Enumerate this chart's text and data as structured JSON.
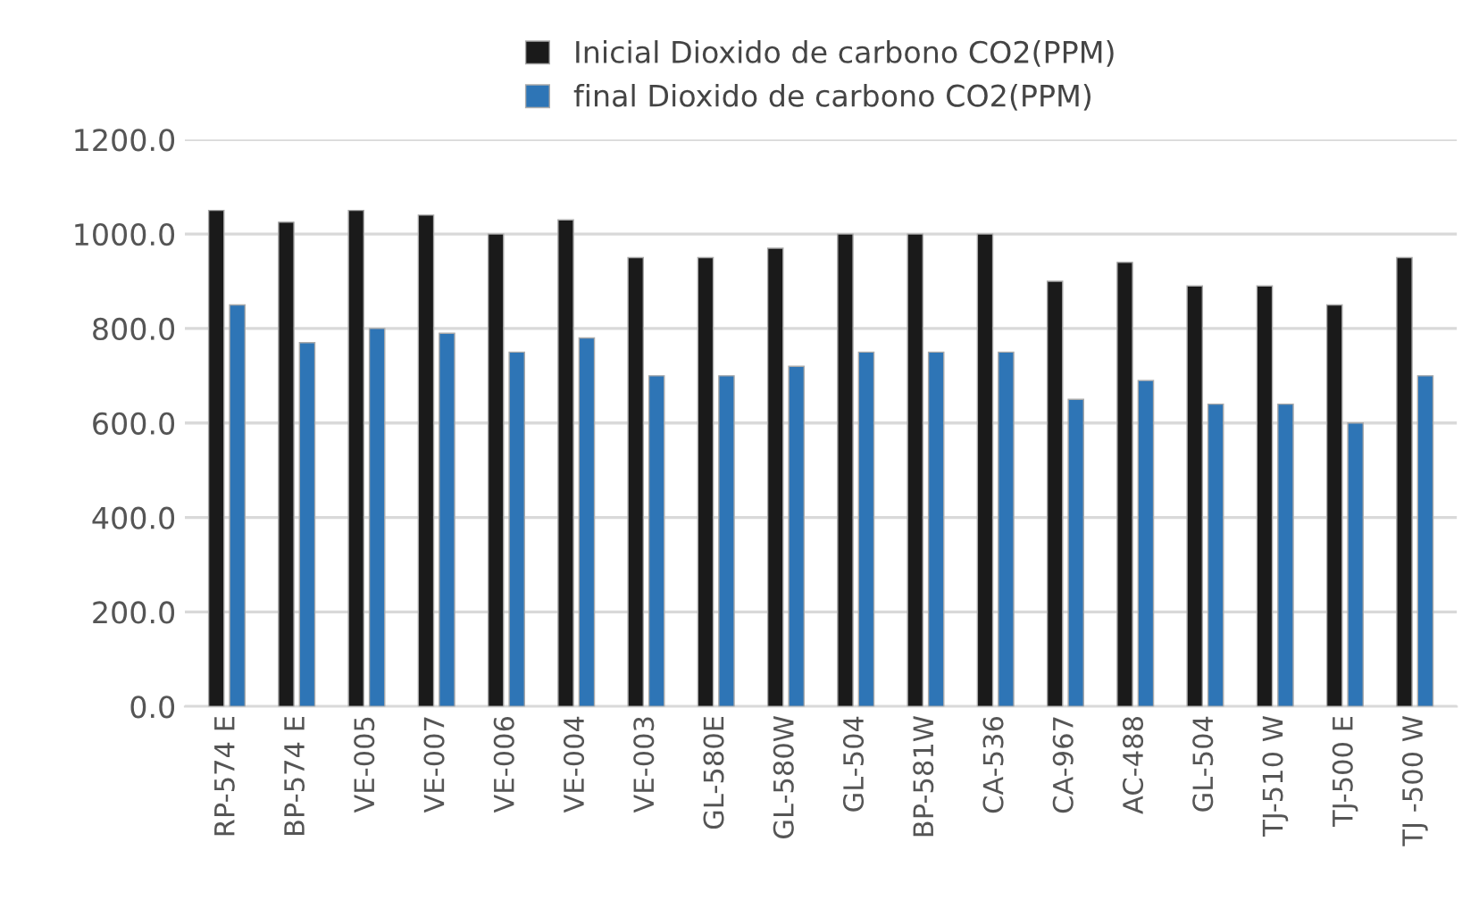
{
  "chart_data": {
    "type": "bar",
    "categories": [
      "RP-574 E",
      "BP-574 E",
      "VE-005",
      "VE-007",
      "VE-006",
      "VE-004",
      "VE-003",
      "GL-580E",
      "GL-580W",
      "GL-504",
      "BP-581W",
      "CA-536",
      "CA-967",
      "AC-488",
      "GL-504",
      "TJ-510 W",
      "TJ-500 E",
      "TJ -500 W"
    ],
    "series": [
      {
        "name": "Inicial Dioxido de carbono CO2(PPM)",
        "color": "#1a1a1a",
        "values": [
          1050,
          1025,
          1050,
          1040,
          1000,
          1030,
          950,
          950,
          970,
          1000,
          1000,
          1000,
          900,
          940,
          890,
          890,
          850,
          950
        ]
      },
      {
        "name": "final Dioxido de carbono CO2(PPM)",
        "color": "#2e75b6",
        "values": [
          850,
          770,
          800,
          790,
          750,
          780,
          700,
          700,
          720,
          750,
          750,
          750,
          650,
          690,
          640,
          640,
          600,
          700
        ]
      }
    ],
    "ylim": [
      0,
      1200
    ],
    "yticks": [
      {
        "value": 0,
        "label": "0.0"
      },
      {
        "value": 200,
        "label": "200.0"
      },
      {
        "value": 400,
        "label": "400.0"
      },
      {
        "value": 600,
        "label": "600.0"
      },
      {
        "value": 800,
        "label": "800.0"
      },
      {
        "value": 1000,
        "label": "1000.0"
      },
      {
        "value": 1200,
        "label": "1200.0"
      }
    ],
    "grid": "y",
    "legend": "top"
  }
}
